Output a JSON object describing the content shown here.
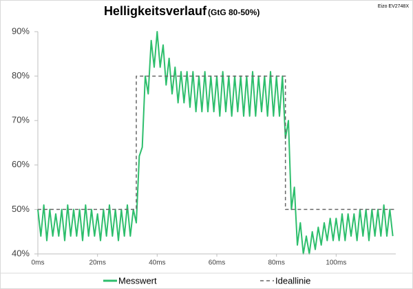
{
  "chart_data": {
    "type": "line",
    "title": "Helligkeitsverlauf",
    "subtitle": "(GtG 80-50%)",
    "annotation": "Eizo EV2748X",
    "x": [
      0,
      1,
      2,
      3,
      4,
      5,
      6,
      7,
      8,
      9,
      10,
      11,
      12,
      13,
      14,
      15,
      16,
      17,
      18,
      19,
      20,
      21,
      22,
      23,
      24,
      25,
      26,
      27,
      28,
      29,
      30,
      31,
      32,
      33,
      34,
      35,
      36,
      37,
      38,
      39,
      40,
      41,
      42,
      43,
      44,
      45,
      46,
      47,
      48,
      49,
      50,
      51,
      52,
      53,
      54,
      55,
      56,
      57,
      58,
      59,
      60,
      61,
      62,
      63,
      64,
      65,
      66,
      67,
      68,
      69,
      70,
      71,
      72,
      73,
      74,
      75,
      76,
      77,
      78,
      79,
      80,
      81,
      82,
      83,
      84,
      85,
      86,
      87,
      88,
      89,
      90,
      91,
      92,
      93,
      94,
      95,
      96,
      97,
      98,
      99,
      100,
      101,
      102,
      103,
      104,
      105,
      106,
      107,
      108,
      109,
      110,
      111,
      112,
      113,
      114,
      115,
      116,
      117,
      118,
      119
    ],
    "series": [
      {
        "name": "Messwert",
        "color": "#2dbe6c",
        "dashed": false,
        "values": [
          50,
          44,
          51,
          43,
          50,
          44,
          49,
          44,
          50,
          43,
          51,
          44,
          50,
          44,
          50,
          43,
          51,
          44,
          50,
          44,
          49,
          43,
          50,
          44,
          51,
          44,
          50,
          43,
          50,
          44,
          51,
          44,
          50,
          47,
          62,
          64,
          80,
          76,
          88,
          82,
          90,
          82,
          87,
          78,
          84,
          76,
          82,
          74,
          81,
          74,
          81,
          73,
          81,
          72,
          80,
          72,
          81,
          72,
          80,
          72,
          80,
          71,
          81,
          72,
          80,
          71,
          80,
          72,
          80,
          71,
          80,
          71,
          81,
          71,
          80,
          72,
          80,
          71,
          81,
          71,
          80,
          71,
          80,
          66,
          70,
          50,
          55,
          42,
          47,
          40,
          44,
          40,
          45,
          41,
          46,
          42,
          47,
          43,
          48,
          43,
          48,
          43,
          49,
          43,
          49,
          44,
          49,
          43,
          50,
          44,
          50,
          43,
          50,
          44,
          50,
          44,
          51,
          44,
          50,
          44
        ]
      },
      {
        "name": "Ideallinie",
        "color": "#666666",
        "dashed": true,
        "x": [
          0,
          33,
          33,
          83,
          83,
          120
        ],
        "values": [
          50,
          50,
          80,
          80,
          50,
          50
        ]
      }
    ],
    "xlim": [
      0,
      120
    ],
    "xticks": [
      {
        "value": 0,
        "label": "0ms"
      },
      {
        "value": 20,
        "label": "20ms"
      },
      {
        "value": 40,
        "label": "40ms"
      },
      {
        "value": 60,
        "label": "60ms"
      },
      {
        "value": 80,
        "label": "80ms"
      },
      {
        "value": 100,
        "label": "100ms"
      }
    ],
    "ylim": [
      40,
      90
    ],
    "yticks": [
      {
        "value": 40,
        "label": "40%"
      },
      {
        "value": 50,
        "label": "50%"
      },
      {
        "value": 60,
        "label": "60%"
      },
      {
        "value": 70,
        "label": "70%"
      },
      {
        "value": 80,
        "label": "80%"
      },
      {
        "value": 90,
        "label": "90%"
      }
    ],
    "grid": false
  }
}
